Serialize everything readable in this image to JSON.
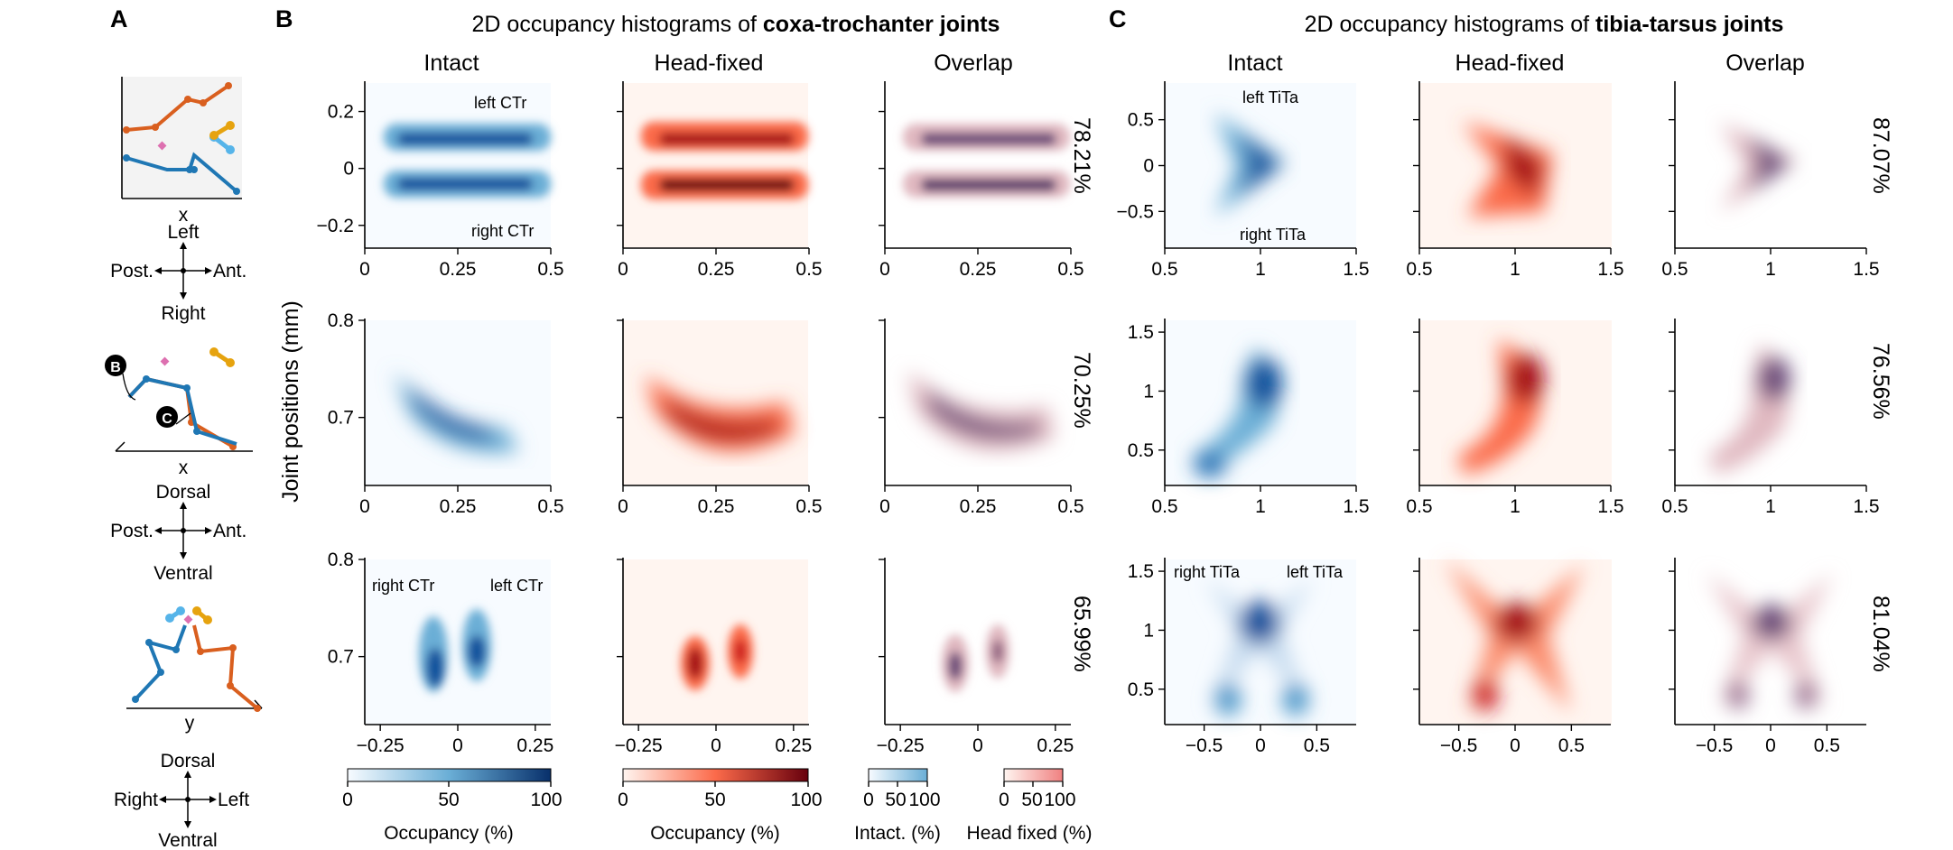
{
  "panel_letters": {
    "a": "A",
    "b": "B",
    "c": "C"
  },
  "section_b": {
    "title_prefix": "2D occupancy histograms of ",
    "title_bold": "coxa-trochanter joints"
  },
  "section_c": {
    "title_prefix": "2D occupancy histograms of ",
    "title_bold": "tibia-tarsus joints"
  },
  "column_titles": [
    "Intact",
    "Head-fixed",
    "Overlap"
  ],
  "y_axis_label": "Joint positions (mm)",
  "panel_a": {
    "axis_x1": "x",
    "axis_x2": "x",
    "axis_y": "y",
    "compass1": {
      "top": "Left",
      "bottom": "Right",
      "left": "Post.",
      "right": "Ant."
    },
    "compass2": {
      "top": "Dorsal",
      "bottom": "Ventral",
      "left": "Post.",
      "right": "Ant."
    },
    "compass3": {
      "top": "Dorsal",
      "bottom": "Ventral",
      "left": "Right",
      "right": "Left"
    },
    "marker_b": "B",
    "marker_c": "C"
  },
  "annotations": {
    "ctr_left": "left CTr",
    "ctr_right": "right CTr",
    "tita_left": "left TiTa",
    "tita_right": "right TiTa"
  },
  "overlap_percent": {
    "ctr": [
      "78.21%",
      "70.25%",
      "65.99%"
    ],
    "tita": [
      "87.07%",
      "76.56%",
      "81.04%"
    ]
  },
  "colorbars": {
    "intact": {
      "label": "Occupancy (%)",
      "ticks": [
        "0",
        "50",
        "100"
      ]
    },
    "headfixed": {
      "label": "Occupancy (%)",
      "ticks": [
        "0",
        "50",
        "100"
      ]
    },
    "overlap_intact": {
      "label": "Intact. (%)",
      "ticks": [
        "0",
        "50",
        "100"
      ]
    },
    "overlap_headfixed": {
      "label": "Head fixed (%)",
      "ticks": [
        "0",
        "50",
        "100"
      ]
    }
  },
  "chart_data": [
    {
      "type": "heatmap",
      "section": "coxa-trochanter",
      "row": 1,
      "xlim": [
        0,
        0.5
      ],
      "ylim": [
        -0.28,
        0.3
      ],
      "xticks": [
        "0",
        "0.25",
        "0.5"
      ],
      "yticks": [
        "0.2",
        "0",
        "-0.2"
      ]
    },
    {
      "type": "heatmap",
      "section": "coxa-trochanter",
      "row": 2,
      "xlim": [
        0,
        0.5
      ],
      "ylim": [
        0.63,
        0.8
      ],
      "xticks": [
        "0",
        "0.25",
        "0.5"
      ],
      "yticks": [
        "0.8",
        "0.7"
      ]
    },
    {
      "type": "heatmap",
      "section": "coxa-trochanter",
      "row": 3,
      "xlim": [
        -0.3,
        0.3
      ],
      "ylim": [
        0.63,
        0.8
      ],
      "xticks": [
        "-0.25",
        "0",
        "0.25"
      ],
      "yticks": [
        "0.8",
        "0.7"
      ]
    },
    {
      "type": "heatmap",
      "section": "tibia-tarsus",
      "row": 1,
      "xlim": [
        0.5,
        1.5
      ],
      "ylim": [
        -0.9,
        0.9
      ],
      "xticks": [
        "0.5",
        "1",
        "1.5"
      ],
      "yticks": [
        "0.5",
        "0",
        "-0.5"
      ]
    },
    {
      "type": "heatmap",
      "section": "tibia-tarsus",
      "row": 2,
      "xlim": [
        0.5,
        1.5
      ],
      "ylim": [
        0.2,
        1.6
      ],
      "xticks": [
        "0.5",
        "1",
        "1.5"
      ],
      "yticks": [
        "1.5",
        "1",
        "0.5"
      ]
    },
    {
      "type": "heatmap",
      "section": "tibia-tarsus",
      "row": 3,
      "xlim": [
        -0.85,
        0.85
      ],
      "ylim": [
        0.2,
        1.6
      ],
      "xticks": [
        "-0.5",
        "0",
        "0.5"
      ],
      "yticks": [
        "1.5",
        "1",
        "0.5"
      ]
    }
  ]
}
